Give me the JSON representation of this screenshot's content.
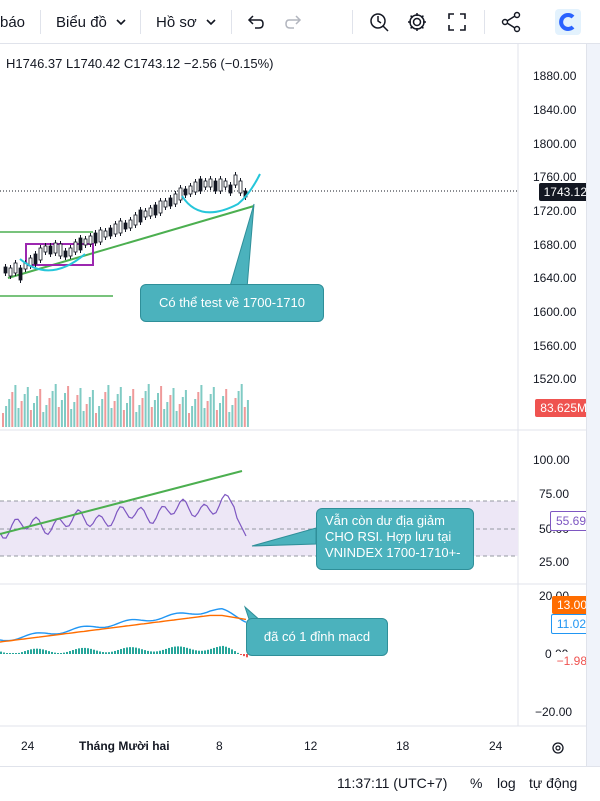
{
  "toolbar": {
    "partial_label": "báo",
    "chart_type_label": "Biểu đồ",
    "profile_label": "Hồ sơ",
    "icons": [
      "chevron-down-icon",
      "undo-icon",
      "redo-icon",
      "alert-icon",
      "gear-icon",
      "fullscreen-icon",
      "share-icon",
      "logo-icon"
    ]
  },
  "ohlc": {
    "high": "H1746.37",
    "low": "L1740.42",
    "close": "C1743.12",
    "change": "−2.56 (−0.15%)"
  },
  "price_axis": [
    "1880.00",
    "1840.00",
    "1800.00",
    "1760.00",
    "1720.00",
    "1680.00",
    "1640.00",
    "1600.00",
    "1560.00",
    "1520.00"
  ],
  "last_price": "1743.12",
  "volume_tag": "83.625M",
  "rsi_axis": [
    "100.00",
    "75.00",
    "50.00",
    "25.00"
  ],
  "rsi_tag": "55.69",
  "macd_axis": [
    "20.00",
    "0.00",
    "−20.00"
  ],
  "macd_tags": {
    "a": "13.00",
    "b": "11.02",
    "c": "−1.98"
  },
  "time_axis": [
    "24",
    "Tháng Mười hai",
    "8",
    "12",
    "18",
    "24"
  ],
  "callouts": {
    "price": "Có thể test về 1700-1710",
    "rsi_line1": "Vẫn còn dư địa giảm",
    "rsi_line2": "CHO RSI. Hợp lưu tại",
    "rsi_line3": "VNINDEX 1700-1710+-",
    "macd": "đã có 1 đỉnh macd"
  },
  "bottom": {
    "time": "11:37:11 (UTC+7)",
    "percent": "%",
    "log": "log",
    "auto": "tự động"
  },
  "colors": {
    "up": "#26a69a",
    "down": "#ef5350",
    "trend": "#4caf50",
    "rsi": "#7e57c2",
    "macd": "#2196f3",
    "signal": "#ff6d00",
    "callout": "#4bb2bd"
  }
}
